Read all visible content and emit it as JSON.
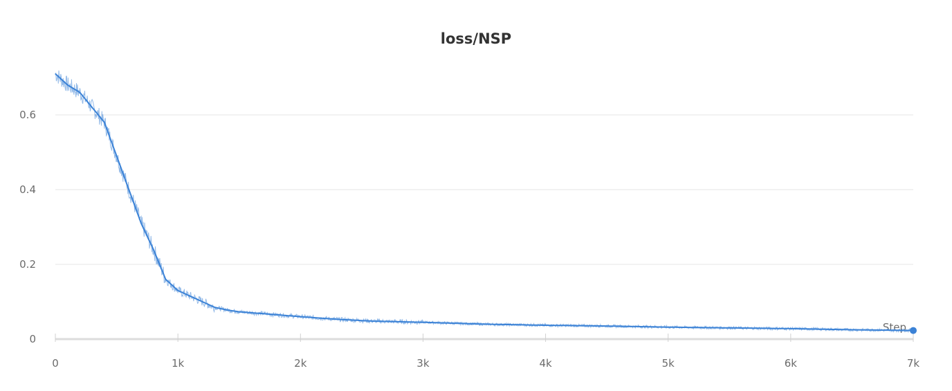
{
  "chart_data": {
    "type": "line",
    "title": "loss/NSP",
    "xlabel": "Step",
    "ylabel": "",
    "xlim": [
      0,
      7000
    ],
    "ylim": [
      0,
      0.7
    ],
    "x_ticks": [
      0,
      1000,
      2000,
      3000,
      4000,
      5000,
      6000,
      7000
    ],
    "x_tick_labels": [
      "0",
      "1k",
      "2k",
      "3k",
      "4k",
      "5k",
      "6k",
      "7k"
    ],
    "y_ticks": [
      0,
      0.2,
      0.4,
      0.6
    ],
    "y_tick_labels": [
      "0",
      "0.2",
      "0.4",
      "0.6"
    ],
    "grid": "horizontal",
    "line_color": "#3b82d6",
    "series": [
      {
        "x": [
          0,
          100,
          200,
          300,
          400,
          500,
          600,
          700,
          800,
          900,
          1000,
          1100,
          1200,
          1300,
          1400,
          1500,
          1700,
          2000,
          2300,
          2600,
          3000,
          3500,
          4000,
          4500,
          5000,
          5500,
          6000,
          6500,
          7000
        ],
        "values": [
          0.71,
          0.68,
          0.66,
          0.62,
          0.58,
          0.49,
          0.4,
          0.31,
          0.24,
          0.16,
          0.13,
          0.115,
          0.1,
          0.085,
          0.078,
          0.073,
          0.068,
          0.06,
          0.053,
          0.048,
          0.045,
          0.04,
          0.037,
          0.035,
          0.032,
          0.03,
          0.028,
          0.025,
          0.023
        ]
      }
    ]
  }
}
